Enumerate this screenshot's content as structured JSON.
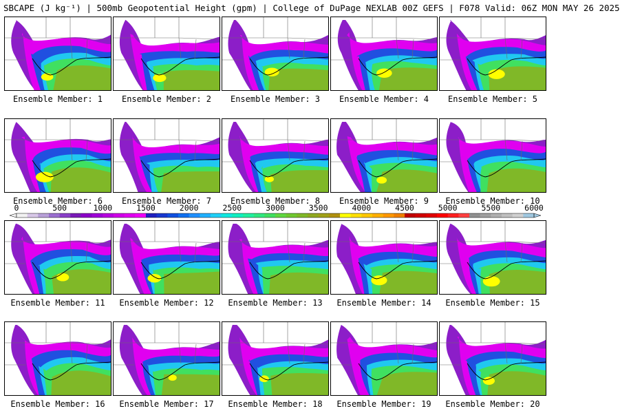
{
  "header": {
    "title": "SBCAPE (J kg⁻¹) | 500mb Geopotential Height (gpm) | College of DuPage NEXLAB 00Z GEFS | F078 Valid: 06Z MON MAY 26 2025"
  },
  "colorbar": {
    "ticks": [
      "0",
      "500",
      "1000",
      "1500",
      "2000",
      "2500",
      "3000",
      "3500",
      "4000",
      "4500",
      "5000",
      "5500",
      "6000"
    ],
    "colors": [
      "#f2f2f2",
      "#d8c8e8",
      "#b8a0d8",
      "#9b6fd0",
      "#8a3fc8",
      "#7a1ab8",
      "#8c00c8",
      "#a000d8",
      "#b800e0",
      "#d000e8",
      "#e000f0",
      "#f000f8",
      "#2020c0",
      "#1838d0",
      "#1050e0",
      "#1070f0",
      "#2090ff",
      "#20b0ff",
      "#20d0f8",
      "#10e8e0",
      "#10f0c0",
      "#20f0a0",
      "#30e880",
      "#40e060",
      "#60d840",
      "#70c830",
      "#80b828",
      "#90a820",
      "#a0a018",
      "#b09010",
      "#ffff00",
      "#ffe000",
      "#ffc800",
      "#ffb000",
      "#ff9800",
      "#f08000",
      "#c00000",
      "#d00000",
      "#e00000",
      "#ff0000",
      "#ff2020",
      "#ff4040",
      "#909090",
      "#a0a0a0",
      "#b0b0b0",
      "#c0c0c0",
      "#d0d0d0",
      "#a0c8e0"
    ]
  },
  "members": [
    {
      "label": "Ensemble Member: 1"
    },
    {
      "label": "Ensemble Member: 2"
    },
    {
      "label": "Ensemble Member: 3"
    },
    {
      "label": "Ensemble Member: 4"
    },
    {
      "label": "Ensemble Member: 5"
    },
    {
      "label": "Ensemble Member: 6"
    },
    {
      "label": "Ensemble Member: 7"
    },
    {
      "label": "Ensemble Member: 8"
    },
    {
      "label": "Ensemble Member: 9"
    },
    {
      "label": "Ensemble Member: 10"
    },
    {
      "label": "Ensemble Member: 11"
    },
    {
      "label": "Ensemble Member: 12"
    },
    {
      "label": "Ensemble Member: 13"
    },
    {
      "label": "Ensemble Member: 14"
    },
    {
      "label": "Ensemble Member: 15"
    },
    {
      "label": "Ensemble Member: 16"
    },
    {
      "label": "Ensemble Member: 17"
    },
    {
      "label": "Ensemble Member: 18"
    },
    {
      "label": "Ensemble Member: 19"
    },
    {
      "label": "Ensemble Member: 20"
    }
  ]
}
